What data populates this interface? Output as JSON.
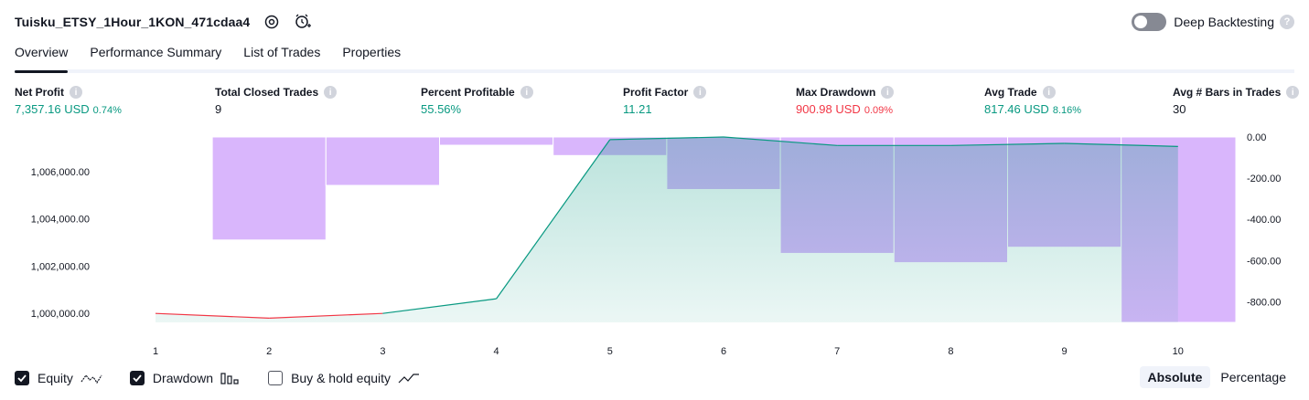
{
  "header": {
    "title": "Tuisku_ETSY_1Hour_1KON_471cdaa4",
    "deep_backtesting_label": "Deep Backtesting"
  },
  "tabs": [
    "Overview",
    "Performance Summary",
    "List of Trades",
    "Properties"
  ],
  "active_tab": "Overview",
  "metrics": {
    "net_profit": {
      "label": "Net Profit",
      "value": "7,357.16 USD",
      "sub": "0.74%"
    },
    "total_closed_trades": {
      "label": "Total Closed Trades",
      "value": "9"
    },
    "percent_profitable": {
      "label": "Percent Profitable",
      "value": "55.56%"
    },
    "profit_factor": {
      "label": "Profit Factor",
      "value": "11.21"
    },
    "max_drawdown": {
      "label": "Max Drawdown",
      "value": "900.98 USD",
      "sub": "0.09%"
    },
    "avg_trade": {
      "label": "Avg Trade",
      "value": "817.46 USD",
      "sub": "8.16%"
    },
    "avg_bars": {
      "label": "Avg # Bars in Trades",
      "value": "30"
    }
  },
  "legend": {
    "equity": "Equity",
    "drawdown": "Drawdown",
    "buy_hold": "Buy & hold equity"
  },
  "modes": {
    "absolute": "Absolute",
    "percentage": "Percentage"
  },
  "colors": {
    "equity_up": "#089981",
    "equity_down": "#f23645",
    "drawdown": "#d9b6fc",
    "accent": "#131722"
  },
  "chart_data": {
    "type": "area",
    "x": [
      1,
      2,
      3,
      4,
      5,
      6,
      7,
      8,
      9,
      10
    ],
    "equity": [
      1000000,
      999800,
      1000000,
      1000620,
      1007360,
      1007470,
      1007110,
      1007110,
      1007200,
      1007070
    ],
    "drawdown": [
      0,
      -500,
      -235,
      -40,
      -90,
      -255,
      -565,
      -610,
      -535,
      -900
    ],
    "left_ticks": [
      "1,000,000.00",
      "1,002,000.00",
      "1,004,000.00",
      "1,006,000.00"
    ],
    "left_tick_values": [
      1000000,
      1002000,
      1004000,
      1006000
    ],
    "right_ticks": [
      "0.00",
      "-200.00",
      "-400.00",
      "-600.00",
      "-800.00"
    ],
    "right_tick_values": [
      0,
      -200,
      -400,
      -600,
      -800
    ],
    "x_tick_labels": [
      "1",
      "2",
      "3",
      "4",
      "5",
      "6",
      "7",
      "8",
      "9",
      "10"
    ],
    "equity_range": [
      999620,
      1007470
    ],
    "drawdown_range": [
      -900,
      0
    ],
    "grid": false,
    "legend_position": "bottom-left"
  }
}
